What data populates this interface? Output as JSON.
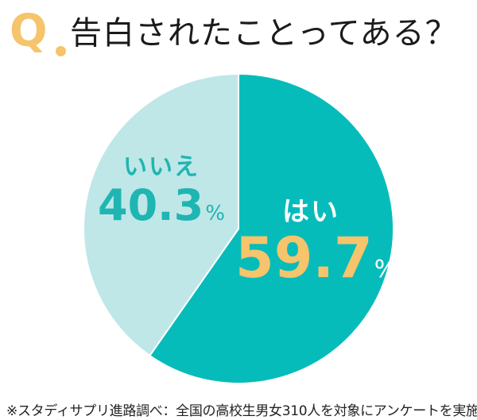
{
  "header": {
    "q_mark": "Q",
    "title": "告白されたことってある？"
  },
  "colors": {
    "yes": "#06bcbb",
    "no": "#bfe7e7",
    "accent": "#f5c46b",
    "no_text": "#1fb5b2"
  },
  "labels": {
    "no": {
      "name": "いいえ",
      "value": "40.3",
      "unit": "%"
    },
    "yes": {
      "name": "はい",
      "value": "59.7",
      "unit": "%"
    }
  },
  "footnote": "※スタディサプリ進路調べ：全国の高校生男女310人を対象にアンケートを実施",
  "chart_data": {
    "type": "pie",
    "title": "告白されたことってある？",
    "categories": [
      "はい",
      "いいえ"
    ],
    "values": [
      59.7,
      40.3
    ],
    "unit": "%",
    "colors": [
      "#06bcbb",
      "#bfe7e7"
    ],
    "start_angle": "12 o'clock, clockwise",
    "note": "※スタディサプリ進路調べ：全国の高校生男女310人を対象にアンケートを実施"
  }
}
